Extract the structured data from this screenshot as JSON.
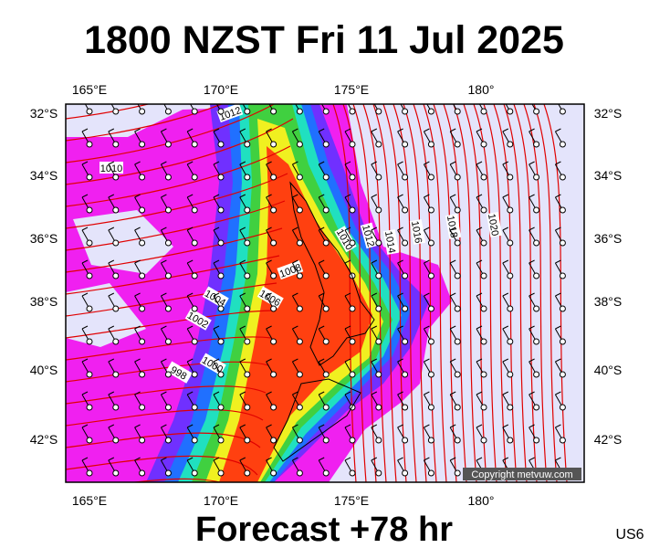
{
  "header": {
    "title": "1800 NZST Fri 11 Jul 2025"
  },
  "map": {
    "lon_labels": [
      "165°E",
      "170°E",
      "175°E",
      "180°"
    ],
    "lat_labels": [
      "32°S",
      "34°S",
      "36°S",
      "38°S",
      "40°S",
      "42°S"
    ],
    "isobar_labels": [
      "1012",
      "1010",
      "1010",
      "1012",
      "1014",
      "1016",
      "1018",
      "1020",
      "1008",
      "1006",
      "1004",
      "1002",
      "1000",
      "998"
    ],
    "copyright": "Copyright metvuw.com"
  },
  "footer": {
    "forecast": "Forecast +78 hr",
    "code": "US6"
  }
}
